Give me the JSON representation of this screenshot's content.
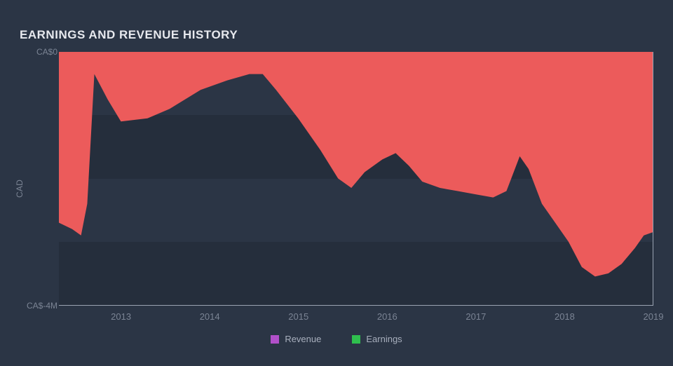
{
  "chart": {
    "type": "area",
    "title": "EARNINGS AND REVENUE HISTORY",
    "title_fontsize": 17,
    "title_color": "#e7e9ee",
    "background_color": "#2b3545",
    "plot_background": "#2b3545",
    "grid_band_color": "#252e3c",
    "axis_line_color": "#9aa3b2",
    "top_rule_color": "#e6e8ef",
    "tick_color": "#7b8494",
    "tick_fontsize": 13,
    "y_scale_label": "CAD",
    "y_scale_label_color": "#7b8494",
    "y_scale_label_fontsize": 12,
    "ylim": [
      -4,
      0
    ],
    "yticks": [
      {
        "v": 0,
        "label": "CA$0"
      },
      {
        "v": -4,
        "label": "CA$-4M"
      }
    ],
    "xlim": [
      2012.3,
      2019
    ],
    "xticks": [
      2013,
      2014,
      2015,
      2016,
      2017,
      2018,
      2019
    ],
    "series": {
      "earnings": {
        "label": "Earnings",
        "legend_color": "#2fbf4e",
        "fill_color": "#ec5b5b",
        "points": [
          [
            2012.3,
            -2.7
          ],
          [
            2012.45,
            -2.8
          ],
          [
            2012.55,
            -2.9
          ],
          [
            2012.62,
            -2.4
          ],
          [
            2012.7,
            -0.35
          ],
          [
            2012.85,
            -0.75
          ],
          [
            2013.0,
            -1.1
          ],
          [
            2013.3,
            -1.05
          ],
          [
            2013.55,
            -0.9
          ],
          [
            2013.9,
            -0.6
          ],
          [
            2014.2,
            -0.45
          ],
          [
            2014.45,
            -0.35
          ],
          [
            2014.6,
            -0.35
          ],
          [
            2014.75,
            -0.6
          ],
          [
            2015.0,
            -1.05
          ],
          [
            2015.25,
            -1.55
          ],
          [
            2015.45,
            -2.0
          ],
          [
            2015.6,
            -2.15
          ],
          [
            2015.75,
            -1.9
          ],
          [
            2015.95,
            -1.7
          ],
          [
            2016.1,
            -1.6
          ],
          [
            2016.25,
            -1.8
          ],
          [
            2016.4,
            -2.05
          ],
          [
            2016.6,
            -2.15
          ],
          [
            2016.8,
            -2.2
          ],
          [
            2017.0,
            -2.25
          ],
          [
            2017.2,
            -2.3
          ],
          [
            2017.35,
            -2.2
          ],
          [
            2017.5,
            -1.65
          ],
          [
            2017.6,
            -1.85
          ],
          [
            2017.75,
            -2.4
          ],
          [
            2017.9,
            -2.7
          ],
          [
            2018.05,
            -3.0
          ],
          [
            2018.2,
            -3.4
          ],
          [
            2018.35,
            -3.55
          ],
          [
            2018.5,
            -3.5
          ],
          [
            2018.65,
            -3.35
          ],
          [
            2018.8,
            -3.1
          ],
          [
            2018.9,
            -2.9
          ],
          [
            2019.0,
            -2.85
          ]
        ]
      },
      "revenue": {
        "label": "Revenue",
        "legend_color": "#b150c9",
        "fill_color": "#b150c9",
        "points": []
      }
    },
    "legend": {
      "items": [
        "revenue",
        "earnings"
      ],
      "text_color": "#a8afbd",
      "fontsize": 13
    }
  }
}
